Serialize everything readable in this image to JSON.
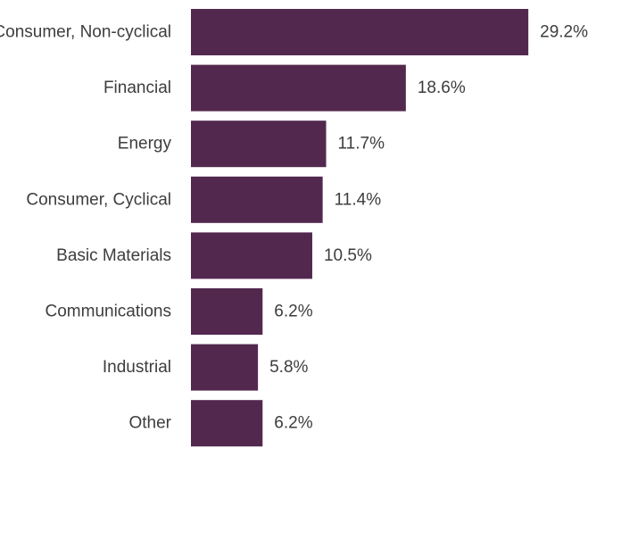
{
  "chart_data": {
    "type": "bar",
    "orientation": "horizontal",
    "title": "",
    "xlabel": "",
    "ylabel": "",
    "categories": [
      "Consumer, Non-cyclical",
      "Financial",
      "Energy",
      "Consumer, Cyclical",
      "Basic Materials",
      "Communications",
      "Industrial",
      "Other"
    ],
    "values": [
      29.2,
      18.6,
      11.7,
      11.4,
      10.5,
      6.2,
      5.8,
      6.2
    ],
    "value_labels": [
      "29.2%",
      "18.6%",
      "11.7%",
      "11.4%",
      "10.5%",
      "6.2%",
      "5.8%",
      "6.2%"
    ],
    "unit": "%",
    "xlim": [
      0,
      35
    ],
    "grid": false,
    "legend": "none",
    "bar_color": "#53284f"
  }
}
